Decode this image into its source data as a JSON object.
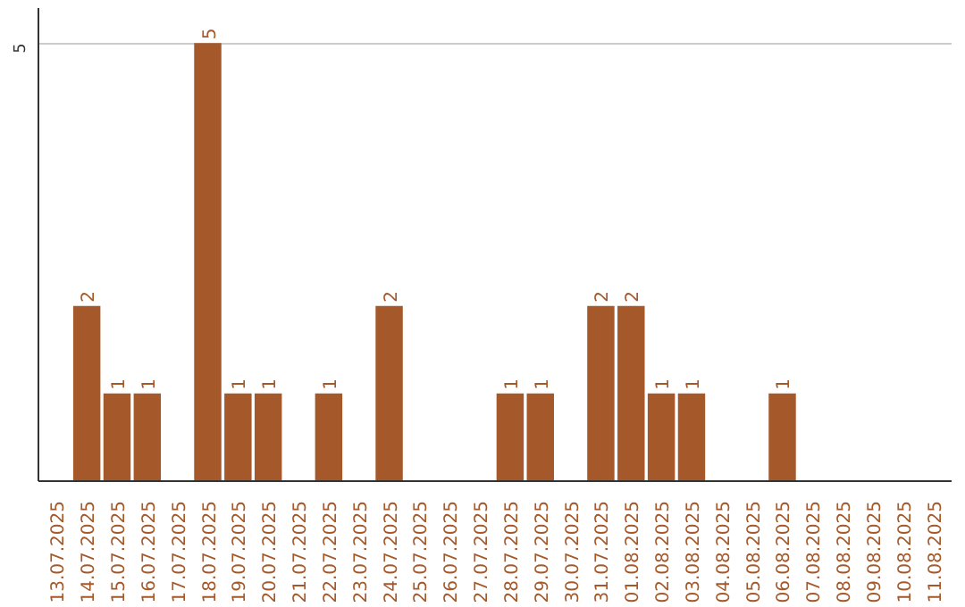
{
  "chart_data": {
    "type": "bar",
    "categories": [
      "13.07.2025",
      "14.07.2025",
      "15.07.2025",
      "16.07.2025",
      "17.07.2025",
      "18.07.2025",
      "19.07.2025",
      "20.07.2025",
      "21.07.2025",
      "22.07.2025",
      "23.07.2025",
      "24.07.2025",
      "25.07.2025",
      "26.07.2025",
      "27.07.2025",
      "28.07.2025",
      "29.07.2025",
      "30.07.2025",
      "31.07.2025",
      "01.08.2025",
      "02.08.2025",
      "03.08.2025",
      "04.08.2025",
      "05.08.2025",
      "06.08.2025",
      "07.08.2025",
      "08.08.2025",
      "09.08.2025",
      "10.08.2025",
      "11.08.2025"
    ],
    "values": [
      0,
      2,
      1,
      1,
      0,
      5,
      1,
      1,
      0,
      1,
      0,
      2,
      0,
      0,
      0,
      1,
      1,
      0,
      2,
      2,
      1,
      1,
      0,
      0,
      1,
      0,
      0,
      0,
      0,
      0
    ],
    "value_labels": [
      null,
      "2",
      "1",
      "1",
      null,
      "5",
      "1",
      "1",
      null,
      "1",
      null,
      "2",
      null,
      null,
      null,
      "1",
      "1",
      null,
      "2",
      "2",
      "1",
      "1",
      null,
      null,
      "1",
      null,
      null,
      null,
      null,
      null
    ],
    "color": "#a5592a",
    "ylim": [
      0,
      5.4
    ],
    "yticks": [
      5
    ],
    "grid": "y"
  }
}
